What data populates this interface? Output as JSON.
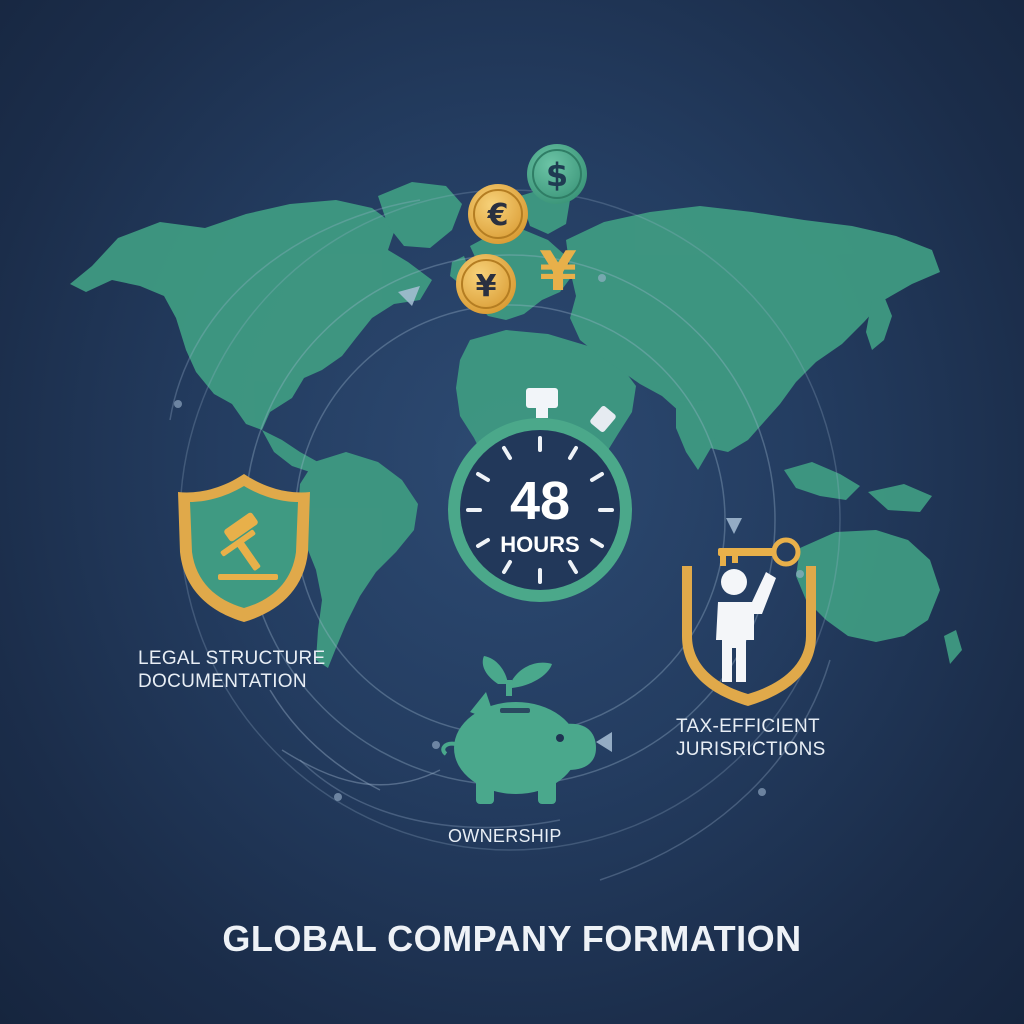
{
  "title": "GLOBAL COMPANY FORMATION",
  "timer": {
    "value": "48",
    "unit": "HOURS"
  },
  "labels": {
    "legal_line1": "LEGAL STRUCTURE",
    "legal_line2": "DOCUMENTATION",
    "tax_line1": "TAX-EFFICIENT",
    "tax_line2": "JURISRICTIONS",
    "ownership": "OWNERSHIP"
  },
  "currencies": [
    "$",
    "€",
    "¥",
    "¥"
  ],
  "icons": [
    "world-map",
    "stopwatch-icon",
    "shield-gavel-icon",
    "key-person-icon",
    "piggy-bank-icon",
    "dollar-coin-icon",
    "euro-coin-icon",
    "yen-coin-icon",
    "yen-symbol-icon"
  ],
  "colors": {
    "background": "#1f3352",
    "map": "#3f9a82",
    "gold": "#e8b04a",
    "teal": "#4aa88c",
    "text": "#e8eef5"
  }
}
